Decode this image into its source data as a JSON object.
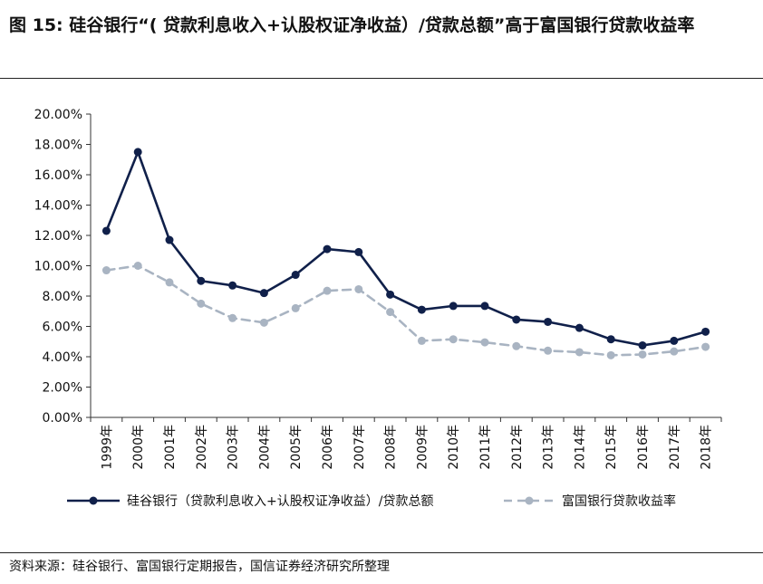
{
  "figure": {
    "title": "图 15:  硅谷银行“( 贷款利息收入+认股权证净收益）/贷款总额”高于富国银行贷款收益率",
    "source": "资料来源：硅谷银行、富国银行定期报告，国信证券经济研究所整理"
  },
  "colors": {
    "series1": "#10204a",
    "series2": "#a9b4c2",
    "axis": "#333333"
  },
  "chart_data": {
    "type": "line",
    "title": "",
    "xlabel": "",
    "ylabel": "",
    "x": [
      "1999年",
      "2000年",
      "2001年",
      "2002年",
      "2003年",
      "2004年",
      "2005年",
      "2006年",
      "2007年",
      "2008年",
      "2009年",
      "2010年",
      "2011年",
      "2012年",
      "2013年",
      "2014年",
      "2015年",
      "2016年",
      "2017年",
      "2018年"
    ],
    "ylim": [
      0,
      20
    ],
    "yticks": [
      "0.00%",
      "2.00%",
      "4.00%",
      "6.00%",
      "8.00%",
      "10.00%",
      "12.00%",
      "14.00%",
      "16.00%",
      "18.00%",
      "20.00%"
    ],
    "grid": false,
    "legend_position": "bottom",
    "series": [
      {
        "name": "硅谷银行（贷款利息收入+认股权证净收益）/贷款总额",
        "style": "solid",
        "values": [
          12.3,
          17.5,
          11.7,
          9.0,
          8.7,
          8.2,
          9.4,
          11.1,
          10.9,
          8.1,
          7.1,
          7.35,
          7.35,
          6.45,
          6.3,
          5.9,
          5.15,
          4.75,
          5.05,
          5.65
        ]
      },
      {
        "name": "富国银行贷款收益率",
        "style": "dashed",
        "values": [
          9.7,
          10.0,
          8.9,
          7.5,
          6.55,
          6.25,
          7.2,
          8.35,
          8.45,
          6.95,
          5.05,
          5.15,
          4.95,
          4.7,
          4.4,
          4.3,
          4.1,
          4.15,
          4.35,
          4.65
        ]
      }
    ]
  }
}
